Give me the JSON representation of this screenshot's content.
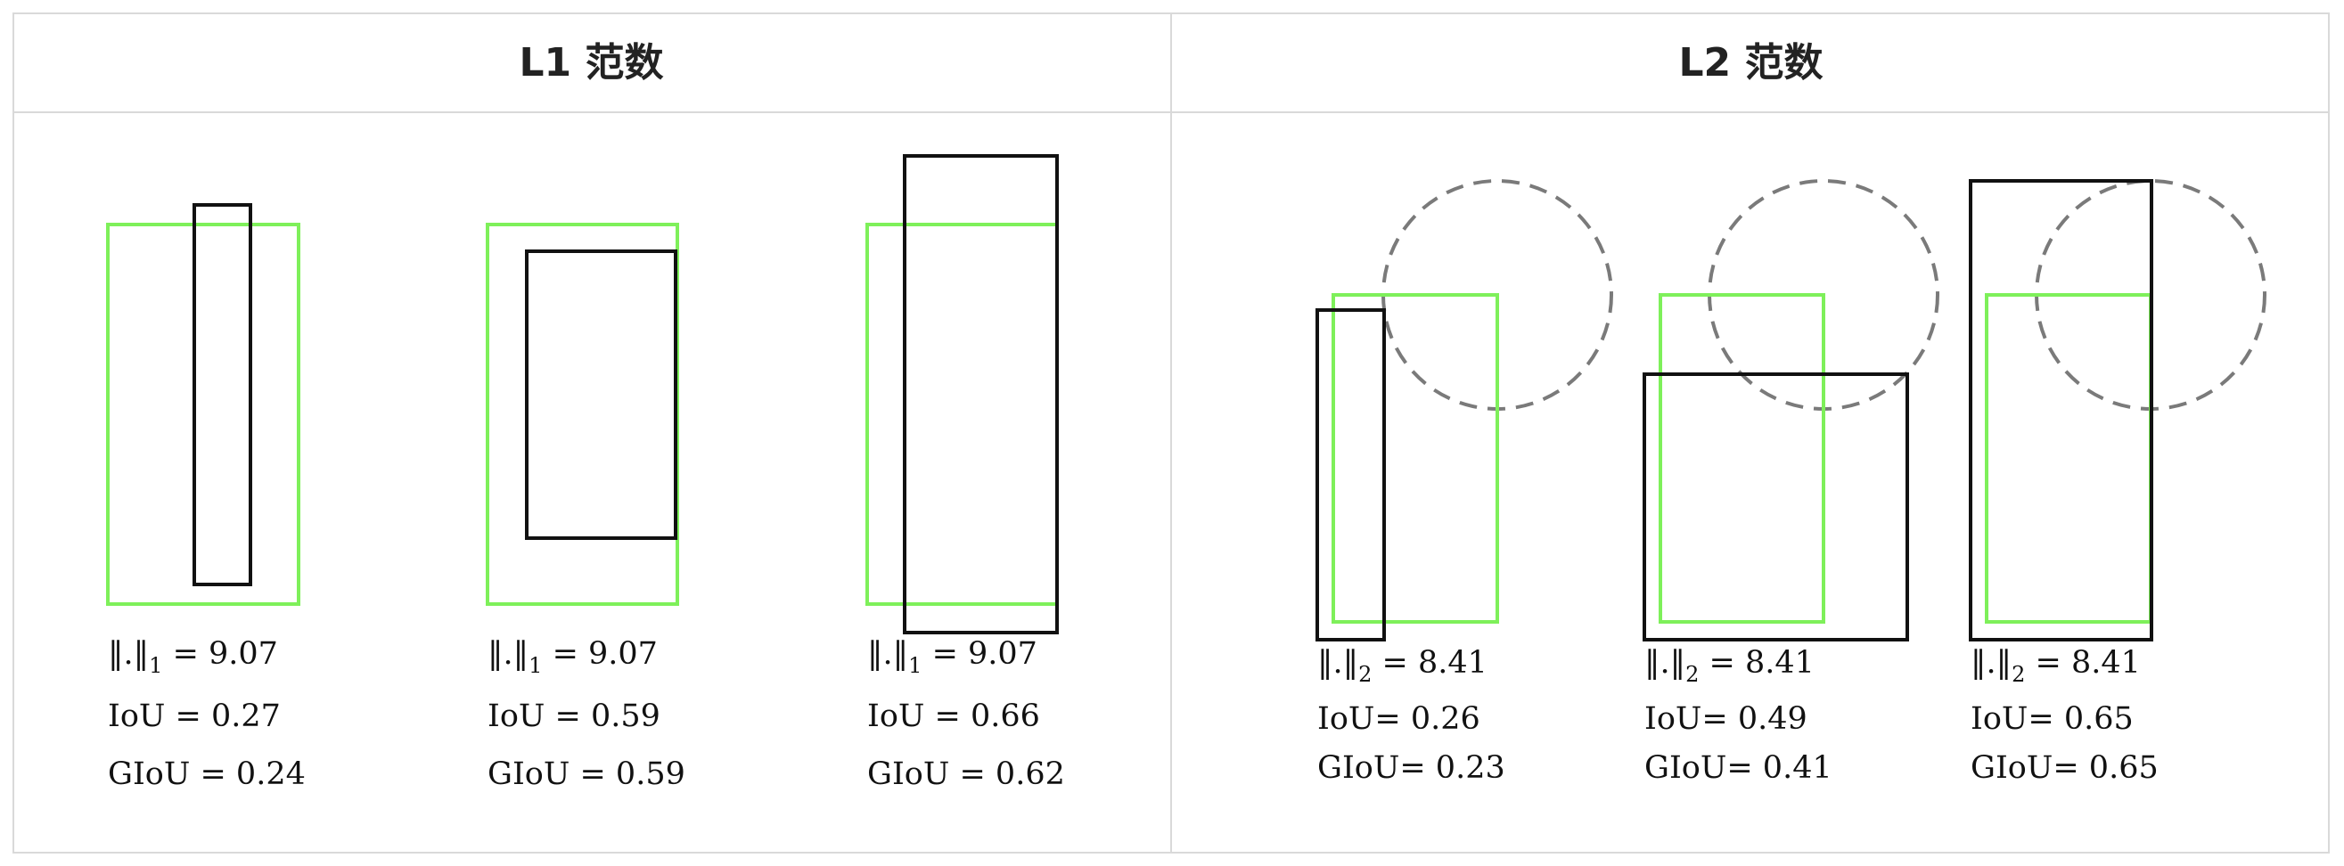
{
  "columns": [
    {
      "title": "L1 范数"
    },
    {
      "title": "L2 范数"
    }
  ],
  "colors": {
    "ground_truth": "#7ef05a",
    "prediction": "#111111",
    "circle": "#7a7a7a",
    "grid": "#d9d9d9"
  },
  "l1_cases": [
    {
      "norm_label": "‖.‖",
      "norm_sub": "1",
      "norm_value": "= 9.07",
      "iou": "IoU = 0.27",
      "giou": "GIoU = 0.24"
    },
    {
      "norm_label": "‖.‖",
      "norm_sub": "1",
      "norm_value": "= 9.07",
      "iou": "IoU = 0.59",
      "giou": "GIoU = 0.59"
    },
    {
      "norm_label": "‖.‖",
      "norm_sub": "1",
      "norm_value": "= 9.07",
      "iou": "IoU = 0.66",
      "giou": "GIoU = 0.62"
    }
  ],
  "l2_cases": [
    {
      "norm_label": "‖.‖",
      "norm_sub": "2",
      "norm_value": " = 8.41",
      "iou": "IoU= 0.26",
      "giou": "GIoU= 0.23"
    },
    {
      "norm_label": "‖.‖",
      "norm_sub": "2",
      "norm_value": " = 8.41",
      "iou": "IoU= 0.49",
      "giou": "GIoU= 0.41"
    },
    {
      "norm_label": "‖.‖",
      "norm_sub": "2",
      "norm_value": " = 8.41",
      "iou": "IoU= 0.65",
      "giou": "GIoU= 0.65"
    }
  ]
}
